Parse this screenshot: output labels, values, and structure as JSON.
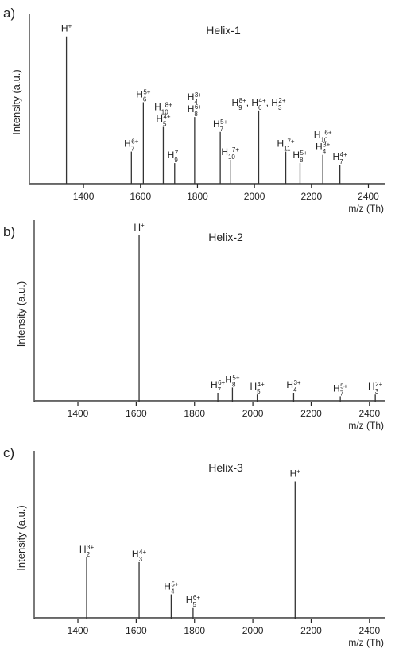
{
  "chart_data": [
    {
      "type": "spectrum",
      "panel": "a)",
      "title": "Helix-1",
      "ylabel": "Intensity (a.u.)",
      "xlabel": "m/z (Th)",
      "xlim": [
        1210,
        2460
      ],
      "xticks": [
        1400,
        1600,
        1800,
        2000,
        2200,
        2400
      ],
      "ylim": [
        0,
        100
      ],
      "x": [
        1340,
        1568,
        1610,
        1680,
        1720,
        1790,
        1880,
        1915,
        2015,
        2110,
        2160,
        2240,
        2300
      ],
      "values": [
        90,
        20,
        50,
        35,
        13,
        41,
        32,
        15,
        45,
        20,
        13,
        18,
        12
      ],
      "labels": [
        [
          [
            {
              "text": "H",
              "sup": "+"
            }
          ]
        ],
        [
          [
            {
              "text": "H",
              "sub": "7",
              "sup": "6+"
            }
          ]
        ],
        [
          [
            {
              "text": "H",
              "sub": "6",
              "sup": "5+"
            }
          ]
        ],
        [
          [
            {
              "text": "H",
              "sub": "10",
              "sup": "8+"
            }
          ],
          [
            {
              "text": "H",
              "sub": "5",
              "sup": "4+"
            }
          ]
        ],
        [
          [
            {
              "text": "H",
              "sub": "9",
              "sup": "7+"
            }
          ]
        ],
        [
          [
            {
              "text": "H",
              "sub": "4",
              "sup": "3+"
            }
          ],
          [
            {
              "text": "H",
              "sub": "8",
              "sup": "6+"
            }
          ]
        ],
        [
          [
            {
              "text": "H",
              "sub": "7",
              "sup": "5+"
            }
          ]
        ],
        [
          [
            {
              "text": "H",
              "sub": "10",
              "sup": "7+"
            }
          ]
        ],
        [
          [
            {
              "text": "H",
              "sub": "9",
              "sup": "8+"
            },
            {
              "text": ", H",
              "sub": "6",
              "sup": "4+"
            },
            {
              "text": ", H",
              "sub": "3",
              "sup": "2+"
            }
          ]
        ],
        [
          [
            {
              "text": "H",
              "sub": "11",
              "sup": "7+"
            }
          ]
        ],
        [
          [
            {
              "text": "H",
              "sub": "8",
              "sup": "5+"
            }
          ]
        ],
        [
          [
            {
              "text": "H",
              "sub": "10",
              "sup": "6+"
            }
          ],
          [
            {
              "text": "H",
              "sub": "4",
              "sup": "3+"
            }
          ]
        ],
        [
          [
            {
              "text": "H",
              "sub": "7",
              "sup": "4+"
            }
          ]
        ]
      ]
    },
    {
      "type": "spectrum",
      "panel": "b)",
      "title": "Helix-2",
      "ylabel": "Intensity (a.u.)",
      "xlabel": "m/z (Th)",
      "xlim": [
        1250,
        2455
      ],
      "xticks": [
        1400,
        1600,
        1800,
        2000,
        2200,
        2400
      ],
      "ylim": [
        0,
        100
      ],
      "x": [
        1610,
        1880,
        1930,
        2015,
        2140,
        2300,
        2420
      ],
      "values": [
        95,
        5,
        8,
        4,
        5,
        3,
        4
      ],
      "labels": [
        [
          [
            {
              "text": "H",
              "sup": "+"
            }
          ]
        ],
        [
          [
            {
              "text": "H",
              "sub": "7",
              "sup": "6+"
            }
          ]
        ],
        [
          [
            {
              "text": "H",
              "sub": "8",
              "sup": "5+"
            }
          ]
        ],
        [
          [
            {
              "text": "H",
              "sub": "5",
              "sup": "4+"
            }
          ]
        ],
        [
          [
            {
              "text": "H",
              "sub": "4",
              "sup": "3+"
            }
          ]
        ],
        [
          [
            {
              "text": "H",
              "sub": "7",
              "sup": "5+"
            }
          ]
        ],
        [
          [
            {
              "text": "H",
              "sub": "3",
              "sup": "2+"
            }
          ]
        ]
      ]
    },
    {
      "type": "spectrum",
      "panel": "c)",
      "title": "Helix-3",
      "ylabel": "Intensity (a.u.)",
      "xlabel": "m/z (Th)",
      "xlim": [
        1250,
        2455
      ],
      "xticks": [
        1400,
        1600,
        1800,
        2000,
        2200,
        2400
      ],
      "ylim": [
        0,
        100
      ],
      "x": [
        1430,
        1610,
        1720,
        1795,
        2145
      ],
      "values": [
        38,
        35,
        15,
        7,
        85
      ],
      "labels": [
        [
          [
            {
              "text": "H",
              "sub": "2",
              "sup": "3+"
            }
          ]
        ],
        [
          [
            {
              "text": "H",
              "sub": "3",
              "sup": "4+"
            }
          ]
        ],
        [
          [
            {
              "text": "H",
              "sub": "4",
              "sup": "5+"
            }
          ]
        ],
        [
          [
            {
              "text": "H",
              "sub": "5",
              "sup": "6+"
            }
          ]
        ],
        [
          [
            {
              "text": "H",
              "sup": "+"
            }
          ]
        ]
      ]
    }
  ]
}
